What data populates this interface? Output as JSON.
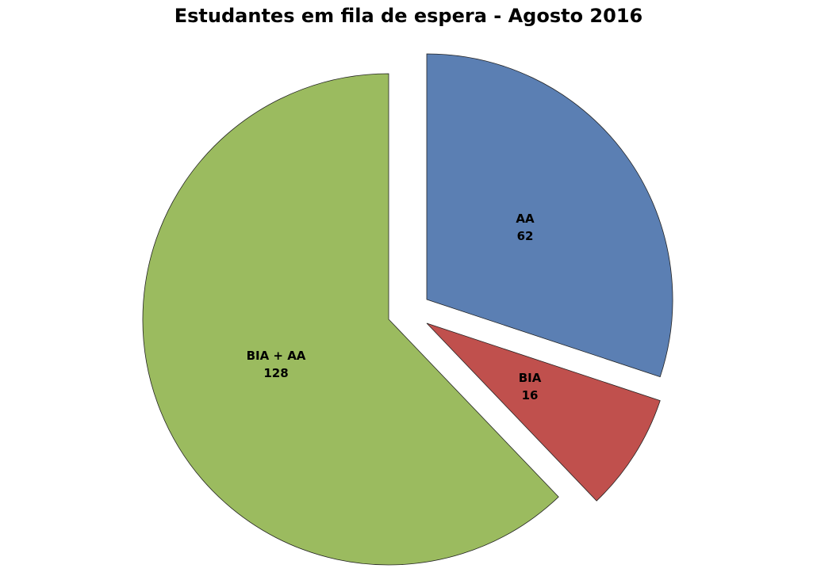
{
  "chart_data": {
    "type": "pie",
    "title": "Estudantes em fila de espera -  Agosto 2016",
    "exploded": true,
    "start_angle": "12 o'clock, clockwise",
    "slices": [
      {
        "label": "AA",
        "value": 62,
        "color": "#5b7fb3"
      },
      {
        "label": "BIA",
        "value": 16,
        "color": "#c0504d"
      },
      {
        "label": "BIA + AA",
        "value": 128,
        "color": "#9bbb5f"
      }
    ]
  }
}
